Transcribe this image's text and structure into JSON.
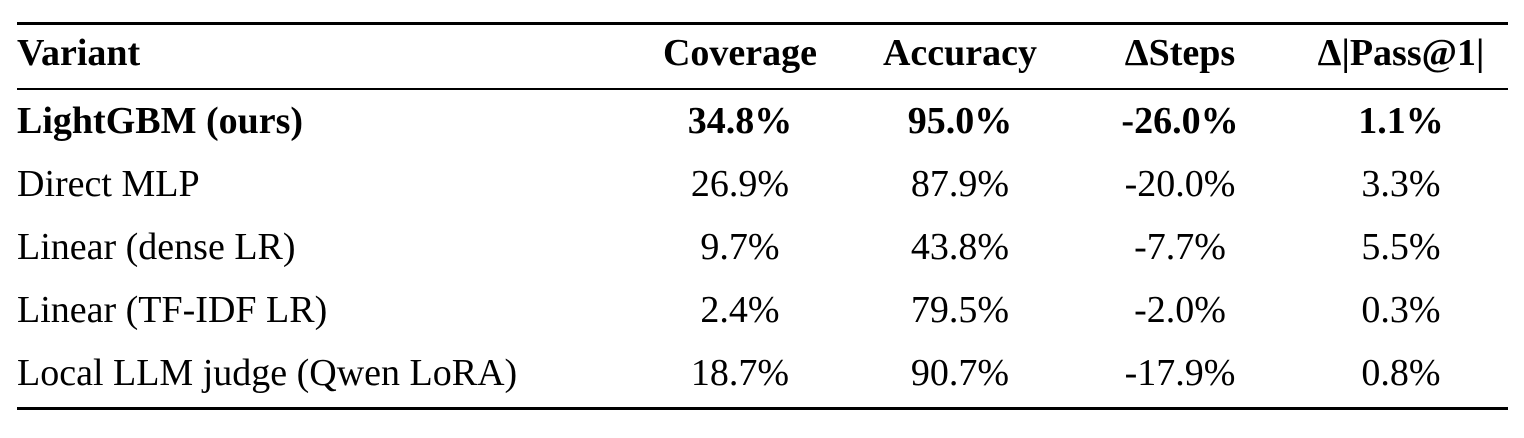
{
  "table": {
    "columns": [
      "Variant",
      "Coverage",
      "Accuracy",
      "ΔSteps",
      "Δ|Pass@1|"
    ],
    "rows": [
      [
        "LightGBM (ours)",
        "34.8%",
        "95.0%",
        "-26.0%",
        "1.1%"
      ],
      [
        "Direct MLP",
        "26.9%",
        "87.9%",
        "-20.0%",
        "3.3%"
      ],
      [
        "Linear (dense LR)",
        "9.7%",
        "43.8%",
        "-7.7%",
        "5.5%"
      ],
      [
        "Linear (TF-IDF LR)",
        "2.4%",
        "79.5%",
        "-2.0%",
        "0.3%"
      ],
      [
        "Local LLM judge (Qwen LoRA)",
        "18.7%",
        "90.7%",
        "-17.9%",
        "0.8%"
      ]
    ],
    "bold_rows": [
      0
    ]
  }
}
